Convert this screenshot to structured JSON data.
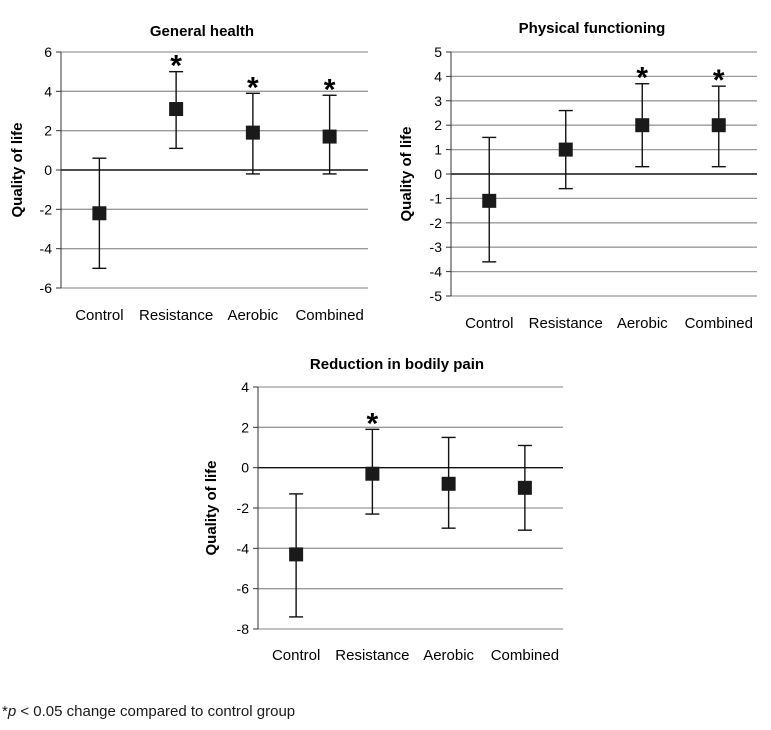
{
  "chart_data": [
    {
      "type": "scatter",
      "title": "General health",
      "ylabel": "Quality of life",
      "categories": [
        "Control",
        "Resistance",
        "Aerobic",
        "Combined"
      ],
      "ylim": [
        -6,
        6
      ],
      "yticks": [
        -6,
        -4,
        -2,
        0,
        2,
        4,
        6
      ],
      "grid": true,
      "points": [
        {
          "category": "Control",
          "mean": -2.2,
          "lower": -5.0,
          "upper": 0.6,
          "significant": false
        },
        {
          "category": "Resistance",
          "mean": 3.1,
          "lower": 1.1,
          "upper": 5.0,
          "significant": true
        },
        {
          "category": "Aerobic",
          "mean": 1.9,
          "lower": -0.2,
          "upper": 3.9,
          "significant": true
        },
        {
          "category": "Combined",
          "mean": 1.7,
          "lower": -0.2,
          "upper": 3.8,
          "significant": true
        }
      ]
    },
    {
      "type": "scatter",
      "title": "Physical functioning",
      "ylabel": "Quality of life",
      "categories": [
        "Control",
        "Resistance",
        "Aerobic",
        "Combined"
      ],
      "ylim": [
        -5,
        5
      ],
      "yticks": [
        -5,
        -4,
        -3,
        -2,
        -1,
        0,
        1,
        2,
        3,
        4,
        5
      ],
      "grid": true,
      "points": [
        {
          "category": "Control",
          "mean": -1.1,
          "lower": -3.6,
          "upper": 1.5,
          "significant": false
        },
        {
          "category": "Resistance",
          "mean": 1.0,
          "lower": -0.6,
          "upper": 2.6,
          "significant": false
        },
        {
          "category": "Aerobic",
          "mean": 2.0,
          "lower": 0.3,
          "upper": 3.7,
          "significant": true
        },
        {
          "category": "Combined",
          "mean": 2.0,
          "lower": 0.3,
          "upper": 3.6,
          "significant": true
        }
      ]
    },
    {
      "type": "scatter",
      "title": "Reduction in bodily pain",
      "ylabel": "Quality of life",
      "categories": [
        "Control",
        "Resistance",
        "Aerobic",
        "Combined"
      ],
      "ylim": [
        -8,
        4
      ],
      "yticks": [
        -8,
        -6,
        -4,
        -2,
        0,
        2,
        4
      ],
      "grid": true,
      "points": [
        {
          "category": "Control",
          "mean": -4.3,
          "lower": -7.4,
          "upper": -1.3,
          "significant": false
        },
        {
          "category": "Resistance",
          "mean": -0.3,
          "lower": -2.3,
          "upper": 1.9,
          "significant": true
        },
        {
          "category": "Aerobic",
          "mean": -0.8,
          "lower": -3.0,
          "upper": 1.5,
          "significant": false
        },
        {
          "category": "Combined",
          "mean": -1.0,
          "lower": -3.1,
          "upper": 1.1,
          "significant": false
        }
      ]
    }
  ],
  "footnote": {
    "prefix": "*",
    "p": "p",
    "text": " < 0.05 change compared to control group"
  }
}
